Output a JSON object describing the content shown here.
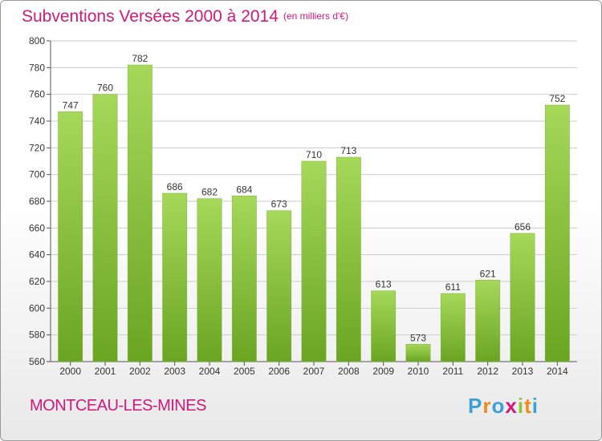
{
  "title": "Subventions Versées 2000 à 2014",
  "subtitle": "(en milliers d'€)",
  "city": "MONTCEAU-LES-MINES",
  "logo": {
    "text": "Proxiti",
    "colors": [
      "#3aa0d8",
      "#f08a1c",
      "#3aa0d8",
      "#d0197a",
      "#8cc63f",
      "#f08a1c",
      "#3aa0d8"
    ]
  },
  "colors": {
    "accent": "#d0197a",
    "bar_light": "#a6d85a",
    "bar_dark": "#6aa522",
    "grid": "#cccccc"
  },
  "chart_data": {
    "type": "bar",
    "categories": [
      "2000",
      "2001",
      "2002",
      "2003",
      "2004",
      "2005",
      "2006",
      "2007",
      "2008",
      "2009",
      "2010",
      "2011",
      "2012",
      "2013",
      "2014"
    ],
    "values": [
      747,
      760,
      782,
      686,
      682,
      684,
      673,
      710,
      713,
      613,
      573,
      611,
      621,
      656,
      752
    ],
    "ylim": [
      560,
      800
    ],
    "yticks": [
      560,
      580,
      600,
      620,
      640,
      660,
      680,
      700,
      720,
      740,
      760,
      780,
      800
    ],
    "grid": true,
    "data_labels": true
  }
}
